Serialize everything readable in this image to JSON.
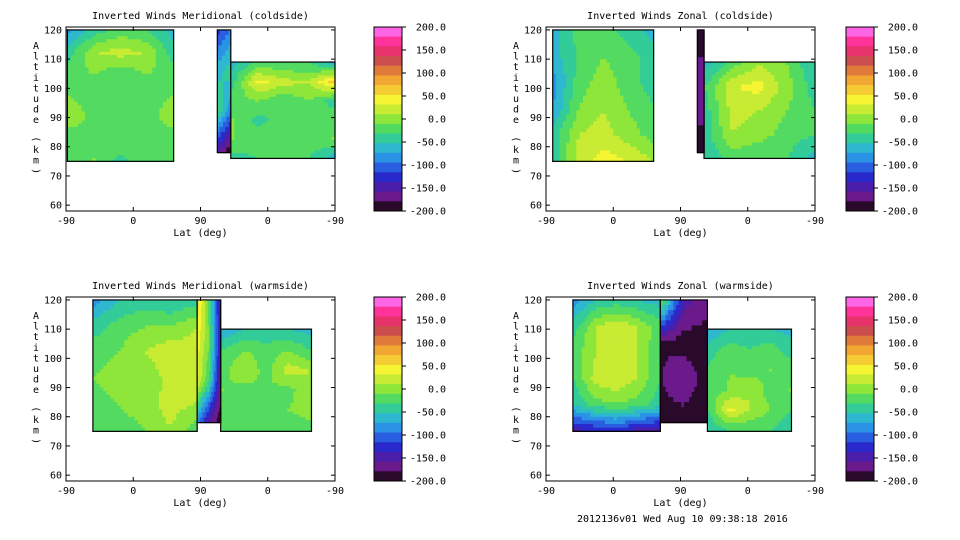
{
  "footer": "2012136v01 Wed Aug 10 09:38:18 2016",
  "colorbar": {
    "ticks": [
      "200.0",
      "150.0",
      "100.0",
      "50.0",
      "0.0",
      "-50.0",
      "-100.0",
      "-150.0",
      "-200.0"
    ],
    "colors": [
      "#ff66e6",
      "#ff3399",
      "#e6336b",
      "#cc4d4d",
      "#e07a3a",
      "#f2a733",
      "#f5cc33",
      "#f5f533",
      "#c8eb33",
      "#8ee63a",
      "#52db60",
      "#33cc99",
      "#2eb8d0",
      "#2a93e6",
      "#2a5ee0",
      "#2a2acc",
      "#4a1eaa",
      "#6a1a8a",
      "#2a0a2a"
    ]
  },
  "chart_data": [
    {
      "type": "heatmap",
      "title": "Inverted Winds Meridional (coldside)",
      "xlabel": "Lat (deg)",
      "ylabel": "Altitude (km)",
      "xticks": [
        "-90",
        "0",
        "90",
        "0",
        "-90"
      ],
      "yticks": [
        "60",
        "70",
        "80",
        "90",
        "100",
        "110",
        "120"
      ],
      "ylim": [
        58,
        121
      ],
      "zlim": [
        -200,
        200
      ],
      "regions": [
        {
          "x": [
            0.02,
            1.6
          ],
          "y": [
            75,
            120
          ],
          "values": [
            [
              -75,
              -40,
              -20,
              -30,
              -60
            ],
            [
              -40,
              10,
              20,
              10,
              -40
            ],
            [
              -20,
              -10,
              -30,
              -10,
              -20
            ],
            [
              -10,
              -30,
              -20,
              -20,
              -10
            ],
            [
              10,
              -20,
              -30,
              -20,
              0
            ],
            [
              -30,
              -20,
              -10,
              -30,
              -20
            ],
            [
              -20,
              -10,
              -40,
              -10,
              -30
            ]
          ]
        },
        {
          "x": [
            2.45,
            4.0
          ],
          "y": [
            76,
            109
          ],
          "values": [
            [
              -60,
              -20,
              -30,
              -30,
              -60
            ],
            [
              -40,
              40,
              20,
              10,
              60
            ],
            [
              -20,
              -10,
              -30,
              -10,
              -40
            ],
            [
              -10,
              -40,
              -20,
              -30,
              -20
            ],
            [
              -10,
              -20,
              -30,
              -20,
              -10
            ],
            [
              -40,
              -30,
              -30,
              -30,
              -60
            ]
          ]
        },
        {
          "x": [
            2.25,
            2.45
          ],
          "y": [
            78,
            120
          ],
          "values": [
            [
              -120,
              -90
            ],
            [
              -60,
              -40
            ],
            [
              -30,
              -90
            ],
            [
              -150,
              -190
            ]
          ]
        }
      ]
    },
    {
      "type": "heatmap",
      "title": "Inverted Winds Zonal (coldside)",
      "xlabel": "Lat (deg)",
      "ylabel": "Altitude (km)",
      "xticks": [
        "-90",
        "0",
        "90",
        "0",
        "-90"
      ],
      "yticks": [
        "60",
        "70",
        "80",
        "90",
        "100",
        "110",
        "120"
      ],
      "ylim": [
        58,
        121
      ],
      "zlim": [
        -200,
        200
      ],
      "regions": [
        {
          "x": [
            0.1,
            1.6
          ],
          "y": [
            75,
            120
          ],
          "values": [
            [
              -60,
              -20,
              -20,
              -40,
              -60
            ],
            [
              -60,
              -30,
              -10,
              -20,
              -40
            ],
            [
              -80,
              -20,
              0,
              -20,
              -40
            ],
            [
              -70,
              -10,
              10,
              -10,
              -30
            ],
            [
              -40,
              10,
              20,
              0,
              -20
            ],
            [
              -40,
              20,
              40,
              30,
              10
            ]
          ]
        },
        {
          "x": [
            2.35,
            4.0
          ],
          "y": [
            76,
            109
          ],
          "values": [
            [
              -60,
              -20,
              10,
              -10,
              -50
            ],
            [
              -30,
              30,
              40,
              0,
              -40
            ],
            [
              -40,
              20,
              10,
              -10,
              -30
            ],
            [
              -40,
              10,
              0,
              -20,
              -30
            ],
            [
              -50,
              -20,
              -30,
              -30,
              -60
            ]
          ]
        },
        {
          "x": [
            2.25,
            2.35
          ],
          "y": [
            78,
            120
          ],
          "values": [
            [
              -190
            ],
            [
              -160
            ],
            [
              -190
            ]
          ]
        }
      ]
    },
    {
      "type": "heatmap",
      "title": "Inverted Winds Meridional (warmside)",
      "xlabel": "Lat (deg)",
      "ylabel": "Altitude (km)",
      "xticks": [
        "-90",
        "0",
        "90",
        "0",
        "-90"
      ],
      "yticks": [
        "60",
        "70",
        "80",
        "90",
        "100",
        "110",
        "120"
      ],
      "ylim": [
        58,
        121
      ],
      "zlim": [
        -200,
        200
      ],
      "regions": [
        {
          "x": [
            0.4,
            1.95
          ],
          "y": [
            75,
            120
          ],
          "values": [
            [
              -80,
              -50,
              -40,
              -50,
              -40
            ],
            [
              -40,
              -20,
              -10,
              -10,
              10
            ],
            [
              -20,
              -10,
              10,
              30,
              20
            ],
            [
              -10,
              0,
              -10,
              20,
              30
            ],
            [
              -20,
              -10,
              0,
              20,
              10
            ],
            [
              -30,
              -20,
              -10,
              10,
              -20
            ]
          ]
        },
        {
          "x": [
            2.3,
            3.65
          ],
          "y": [
            75,
            110
          ],
          "values": [
            [
              -70,
              -50,
              -50,
              -50,
              -60
            ],
            [
              -30,
              -10,
              -20,
              -10,
              -30
            ],
            [
              -20,
              10,
              -20,
              20,
              10
            ],
            [
              -10,
              -20,
              -10,
              -20,
              10
            ],
            [
              -30,
              -10,
              -20,
              -10,
              0
            ],
            [
              -30,
              -20,
              -20,
              -30,
              -20
            ]
          ]
        },
        {
          "x": [
            1.95,
            2.3
          ],
          "y": [
            78,
            120
          ],
          "values": [
            [
              60,
              -20,
              -150
            ],
            [
              40,
              -10,
              -140
            ],
            [
              30,
              -30,
              -160
            ],
            [
              -80,
              -150,
              -190
            ]
          ]
        }
      ]
    },
    {
      "type": "heatmap",
      "title": "Inverted Winds Zonal (warmside)",
      "xlabel": "Lat (deg)",
      "ylabel": "Altitude (km)",
      "xticks": [
        "-90",
        "0",
        "90",
        "0",
        "-90"
      ],
      "yticks": [
        "60",
        "70",
        "80",
        "90",
        "100",
        "110",
        "120"
      ],
      "ylim": [
        58,
        121
      ],
      "zlim": [
        -200,
        200
      ],
      "regions": [
        {
          "x": [
            0.4,
            1.7
          ],
          "y": [
            75,
            120
          ],
          "values": [
            [
              -80,
              -50,
              -40,
              -50,
              -60
            ],
            [
              -40,
              10,
              30,
              10,
              -20
            ],
            [
              -20,
              10,
              20,
              10,
              -30
            ],
            [
              -30,
              20,
              30,
              10,
              -30
            ],
            [
              -50,
              -20,
              -10,
              -20,
              -40
            ],
            [
              -140,
              -130,
              -120,
              -140,
              -150
            ]
          ]
        },
        {
          "x": [
            2.4,
            3.65
          ],
          "y": [
            75,
            110
          ],
          "values": [
            [
              -70,
              -50,
              -50,
              -50,
              -60
            ],
            [
              -40,
              -20,
              -30,
              -20,
              -40
            ],
            [
              -30,
              -10,
              -20,
              -10,
              -20
            ],
            [
              -20,
              -10,
              10,
              -20,
              -10
            ],
            [
              -30,
              40,
              10,
              -10,
              -30
            ],
            [
              -50,
              -30,
              -30,
              -30,
              -50
            ]
          ]
        },
        {
          "x": [
            1.7,
            2.4
          ],
          "y": [
            78,
            120
          ],
          "values": [
            [
              -20,
              -150,
              -170
            ],
            [
              -180,
              -190,
              -190
            ],
            [
              -180,
              -160,
              -190
            ],
            [
              -190,
              -190,
              -200
            ]
          ]
        }
      ]
    }
  ]
}
